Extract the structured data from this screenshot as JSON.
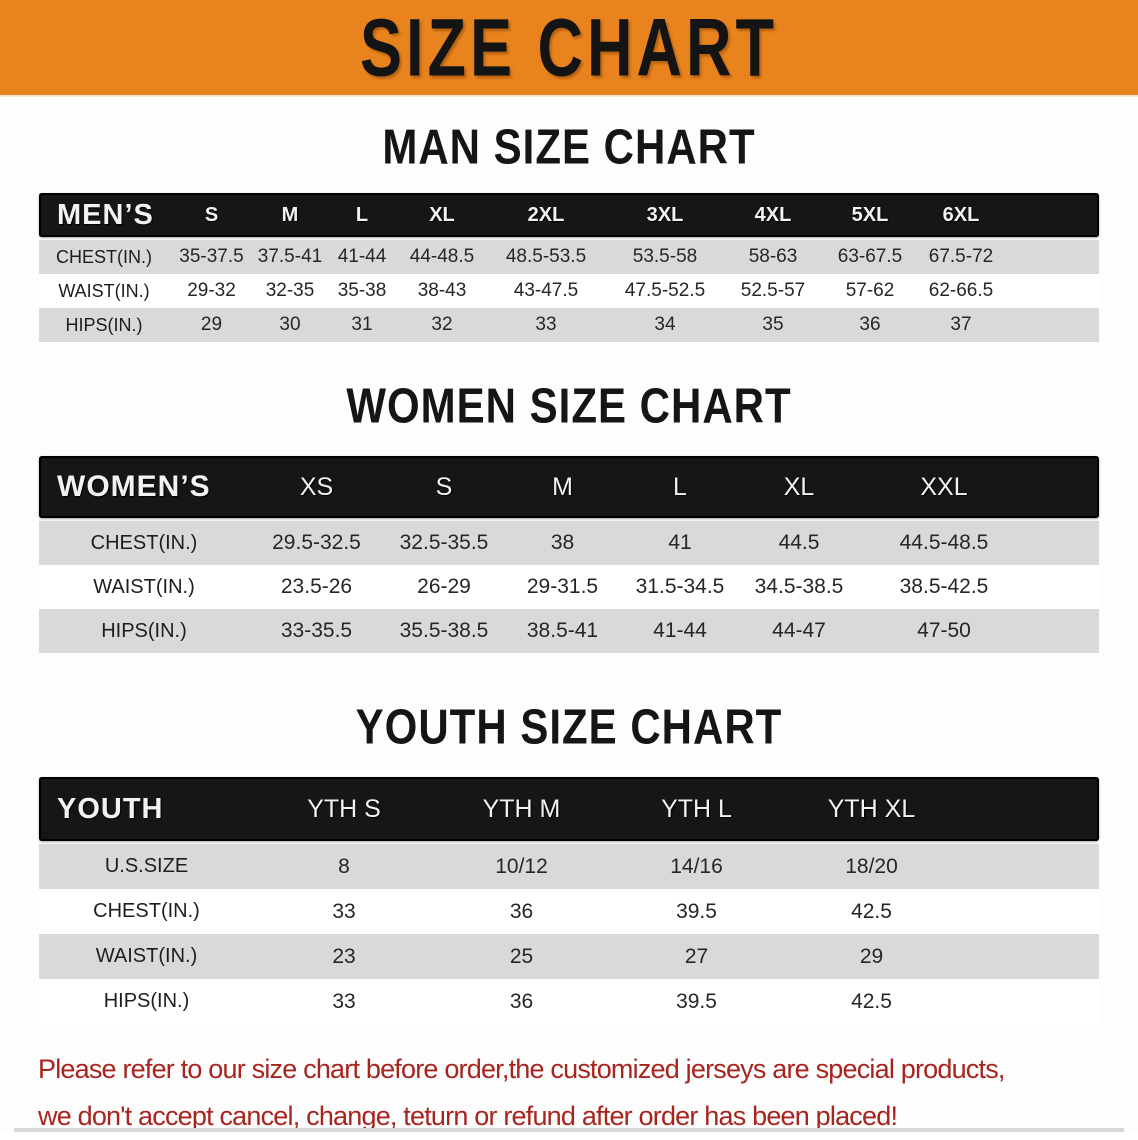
{
  "banner": {
    "title": "SIZE CHART"
  },
  "sections": [
    {
      "id": "men",
      "title": "MAN SIZE CHART",
      "header_label": "MEN’S",
      "columns": [
        "S",
        "M",
        "L",
        "XL",
        "2XL",
        "3XL",
        "4XL",
        "5XL",
        "6XL"
      ],
      "rows": [
        {
          "label": "CHEST(IN.)",
          "values": [
            "35-37.5",
            "37.5-41",
            "41-44",
            "44-48.5",
            "48.5-53.5",
            "53.5-58",
            "58-63",
            "63-67.5",
            "67.5-72"
          ]
        },
        {
          "label": "WAIST(IN.)",
          "values": [
            "29-32",
            "32-35",
            "35-38",
            "38-43",
            "43-47.5",
            "47.5-52.5",
            "52.5-57",
            "57-62",
            "62-66.5"
          ]
        },
        {
          "label": "HIPS(IN.)",
          "values": [
            "29",
            "30",
            "31",
            "32",
            "33",
            "34",
            "35",
            "36",
            "37"
          ]
        }
      ]
    },
    {
      "id": "women",
      "title": "WOMEN SIZE CHART",
      "header_label": "WOMEN’S",
      "columns": [
        "XS",
        "S",
        "M",
        "L",
        "XL",
        "XXL"
      ],
      "rows": [
        {
          "label": "CHEST(IN.)",
          "values": [
            "29.5-32.5",
            "32.5-35.5",
            "38",
            "41",
            "44.5",
            "44.5-48.5"
          ]
        },
        {
          "label": "WAIST(IN.)",
          "values": [
            "23.5-26",
            "26-29",
            "29-31.5",
            "31.5-34.5",
            "34.5-38.5",
            "38.5-42.5"
          ]
        },
        {
          "label": "HIPS(IN.)",
          "values": [
            "33-35.5",
            "35.5-38.5",
            "38.5-41",
            "41-44",
            "44-47",
            "47-50"
          ]
        }
      ]
    },
    {
      "id": "youth",
      "title": "YOUTH SIZE CHART",
      "header_label": "YOUTH",
      "columns": [
        "YTH S",
        "YTH M",
        "YTH L",
        "YTH XL"
      ],
      "rows": [
        {
          "label": "U.S.SIZE",
          "values": [
            "8",
            "10/12",
            "14/16",
            "18/20"
          ]
        },
        {
          "label": "CHEST(IN.)",
          "values": [
            "33",
            "36",
            "39.5",
            "42.5"
          ]
        },
        {
          "label": "WAIST(IN.)",
          "values": [
            "23",
            "25",
            "27",
            "29"
          ]
        },
        {
          "label": "HIPS(IN.)",
          "values": [
            "33",
            "36",
            "39.5",
            "42.5"
          ]
        }
      ]
    }
  ],
  "disclaimer": {
    "line1": "Please refer to our size chart before order,the customized jerseys are special products,",
    "line2": "we don't accept cancel, change, teturn or refund after order has been placed!"
  },
  "colors": {
    "banner_orange": "#E8831E",
    "header_black": "#161616",
    "row_gray": "#D9D9D9",
    "row_white": "#FFFFFF",
    "disclaimer_red": "#A8241F"
  }
}
